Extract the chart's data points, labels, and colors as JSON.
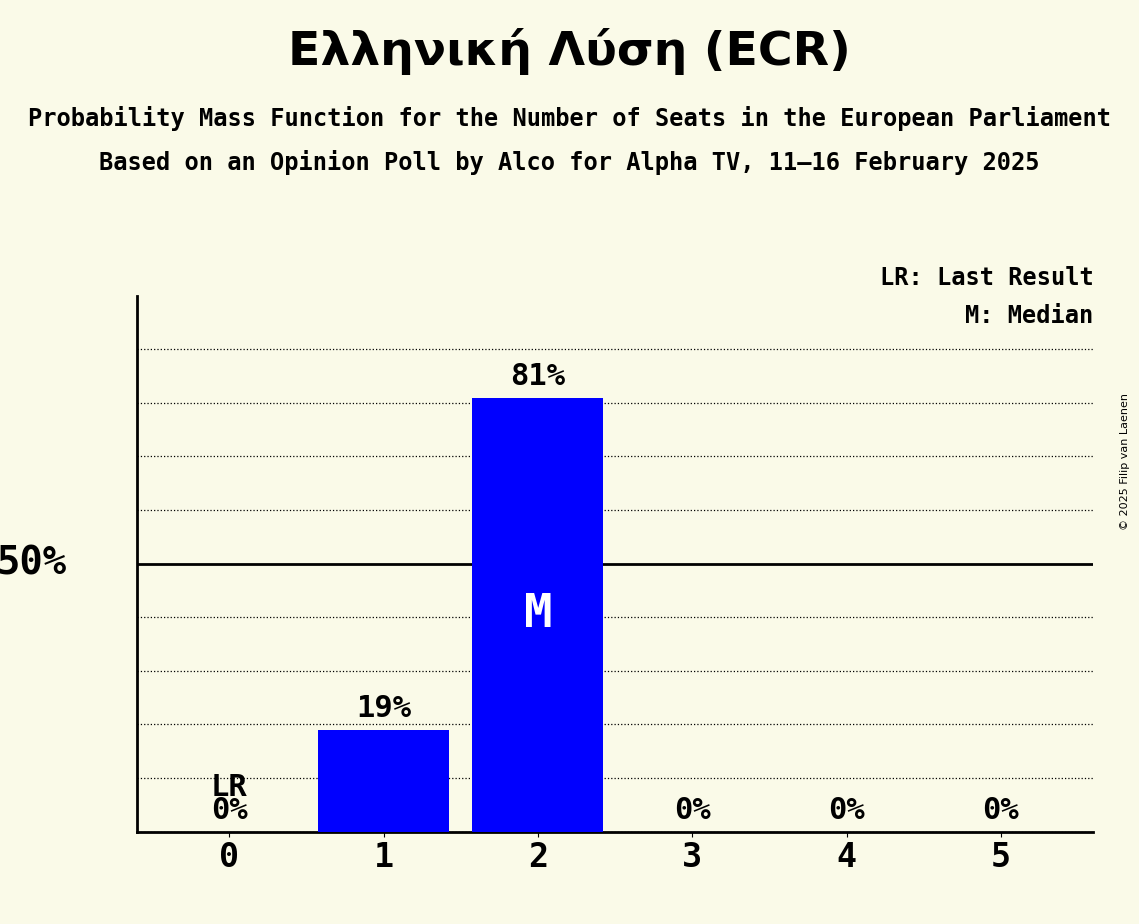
{
  "title": "Ελληνική Λύση (ECR)",
  "subtitle1": "Probability Mass Function for the Number of Seats in the European Parliament",
  "subtitle2": "Based on an Opinion Poll by Alco for Alpha TV, 11–16 February 2025",
  "copyright": "© 2025 Filip van Laenen",
  "x_values": [
    0,
    1,
    2,
    3,
    4,
    5
  ],
  "y_values": [
    0,
    0.19,
    0.81,
    0,
    0,
    0
  ],
  "bar_color": "#0000FF",
  "background_color": "#FAFAE8",
  "median": 2,
  "last_result": 0,
  "ylim_max": 1.0,
  "title_fontsize": 34,
  "subtitle_fontsize": 17,
  "bar_label_fontsize": 22,
  "xtick_fontsize": 24,
  "legend_fontsize": 17,
  "fifty_label_fontsize": 28,
  "median_fontsize": 34,
  "lr_fontsize": 22,
  "copyright_fontsize": 8,
  "grid_levels": [
    0.0,
    0.1,
    0.2,
    0.3,
    0.4,
    0.6,
    0.7,
    0.8,
    0.9
  ],
  "solid_line": 0.5,
  "bar_width": 0.85
}
